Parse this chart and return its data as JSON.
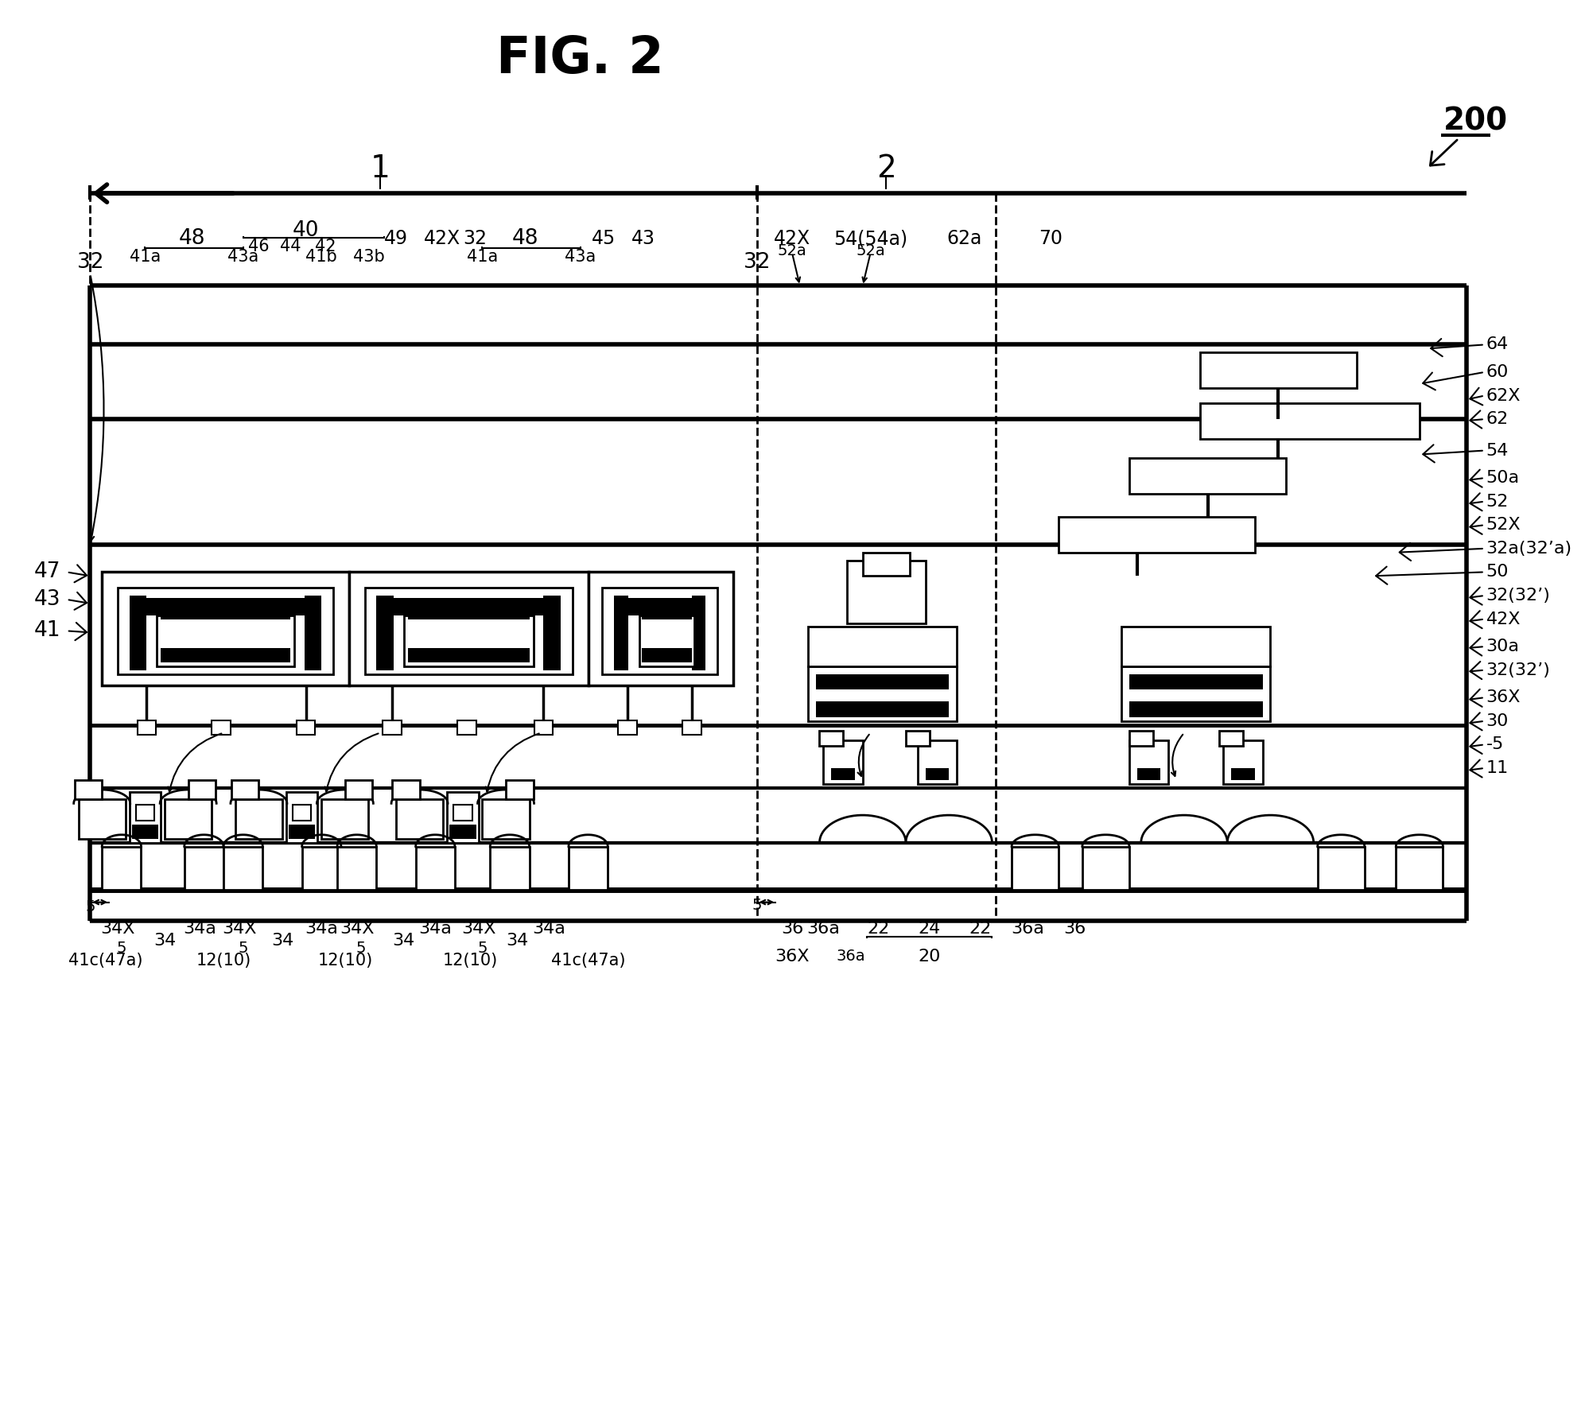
{
  "title": "FIG. 2",
  "bg_color": "#ffffff",
  "figsize": [
    19.93,
    17.82
  ],
  "dpi": 100,
  "right_labels": [
    "64",
    "60",
    "62X",
    "62",
    "54",
    "50a",
    "52",
    "52X",
    "32a(32’a)",
    "50",
    "32(32’)",
    "42X",
    "30a",
    "32(32’)",
    "36X",
    "30",
    "-5",
    "11"
  ]
}
